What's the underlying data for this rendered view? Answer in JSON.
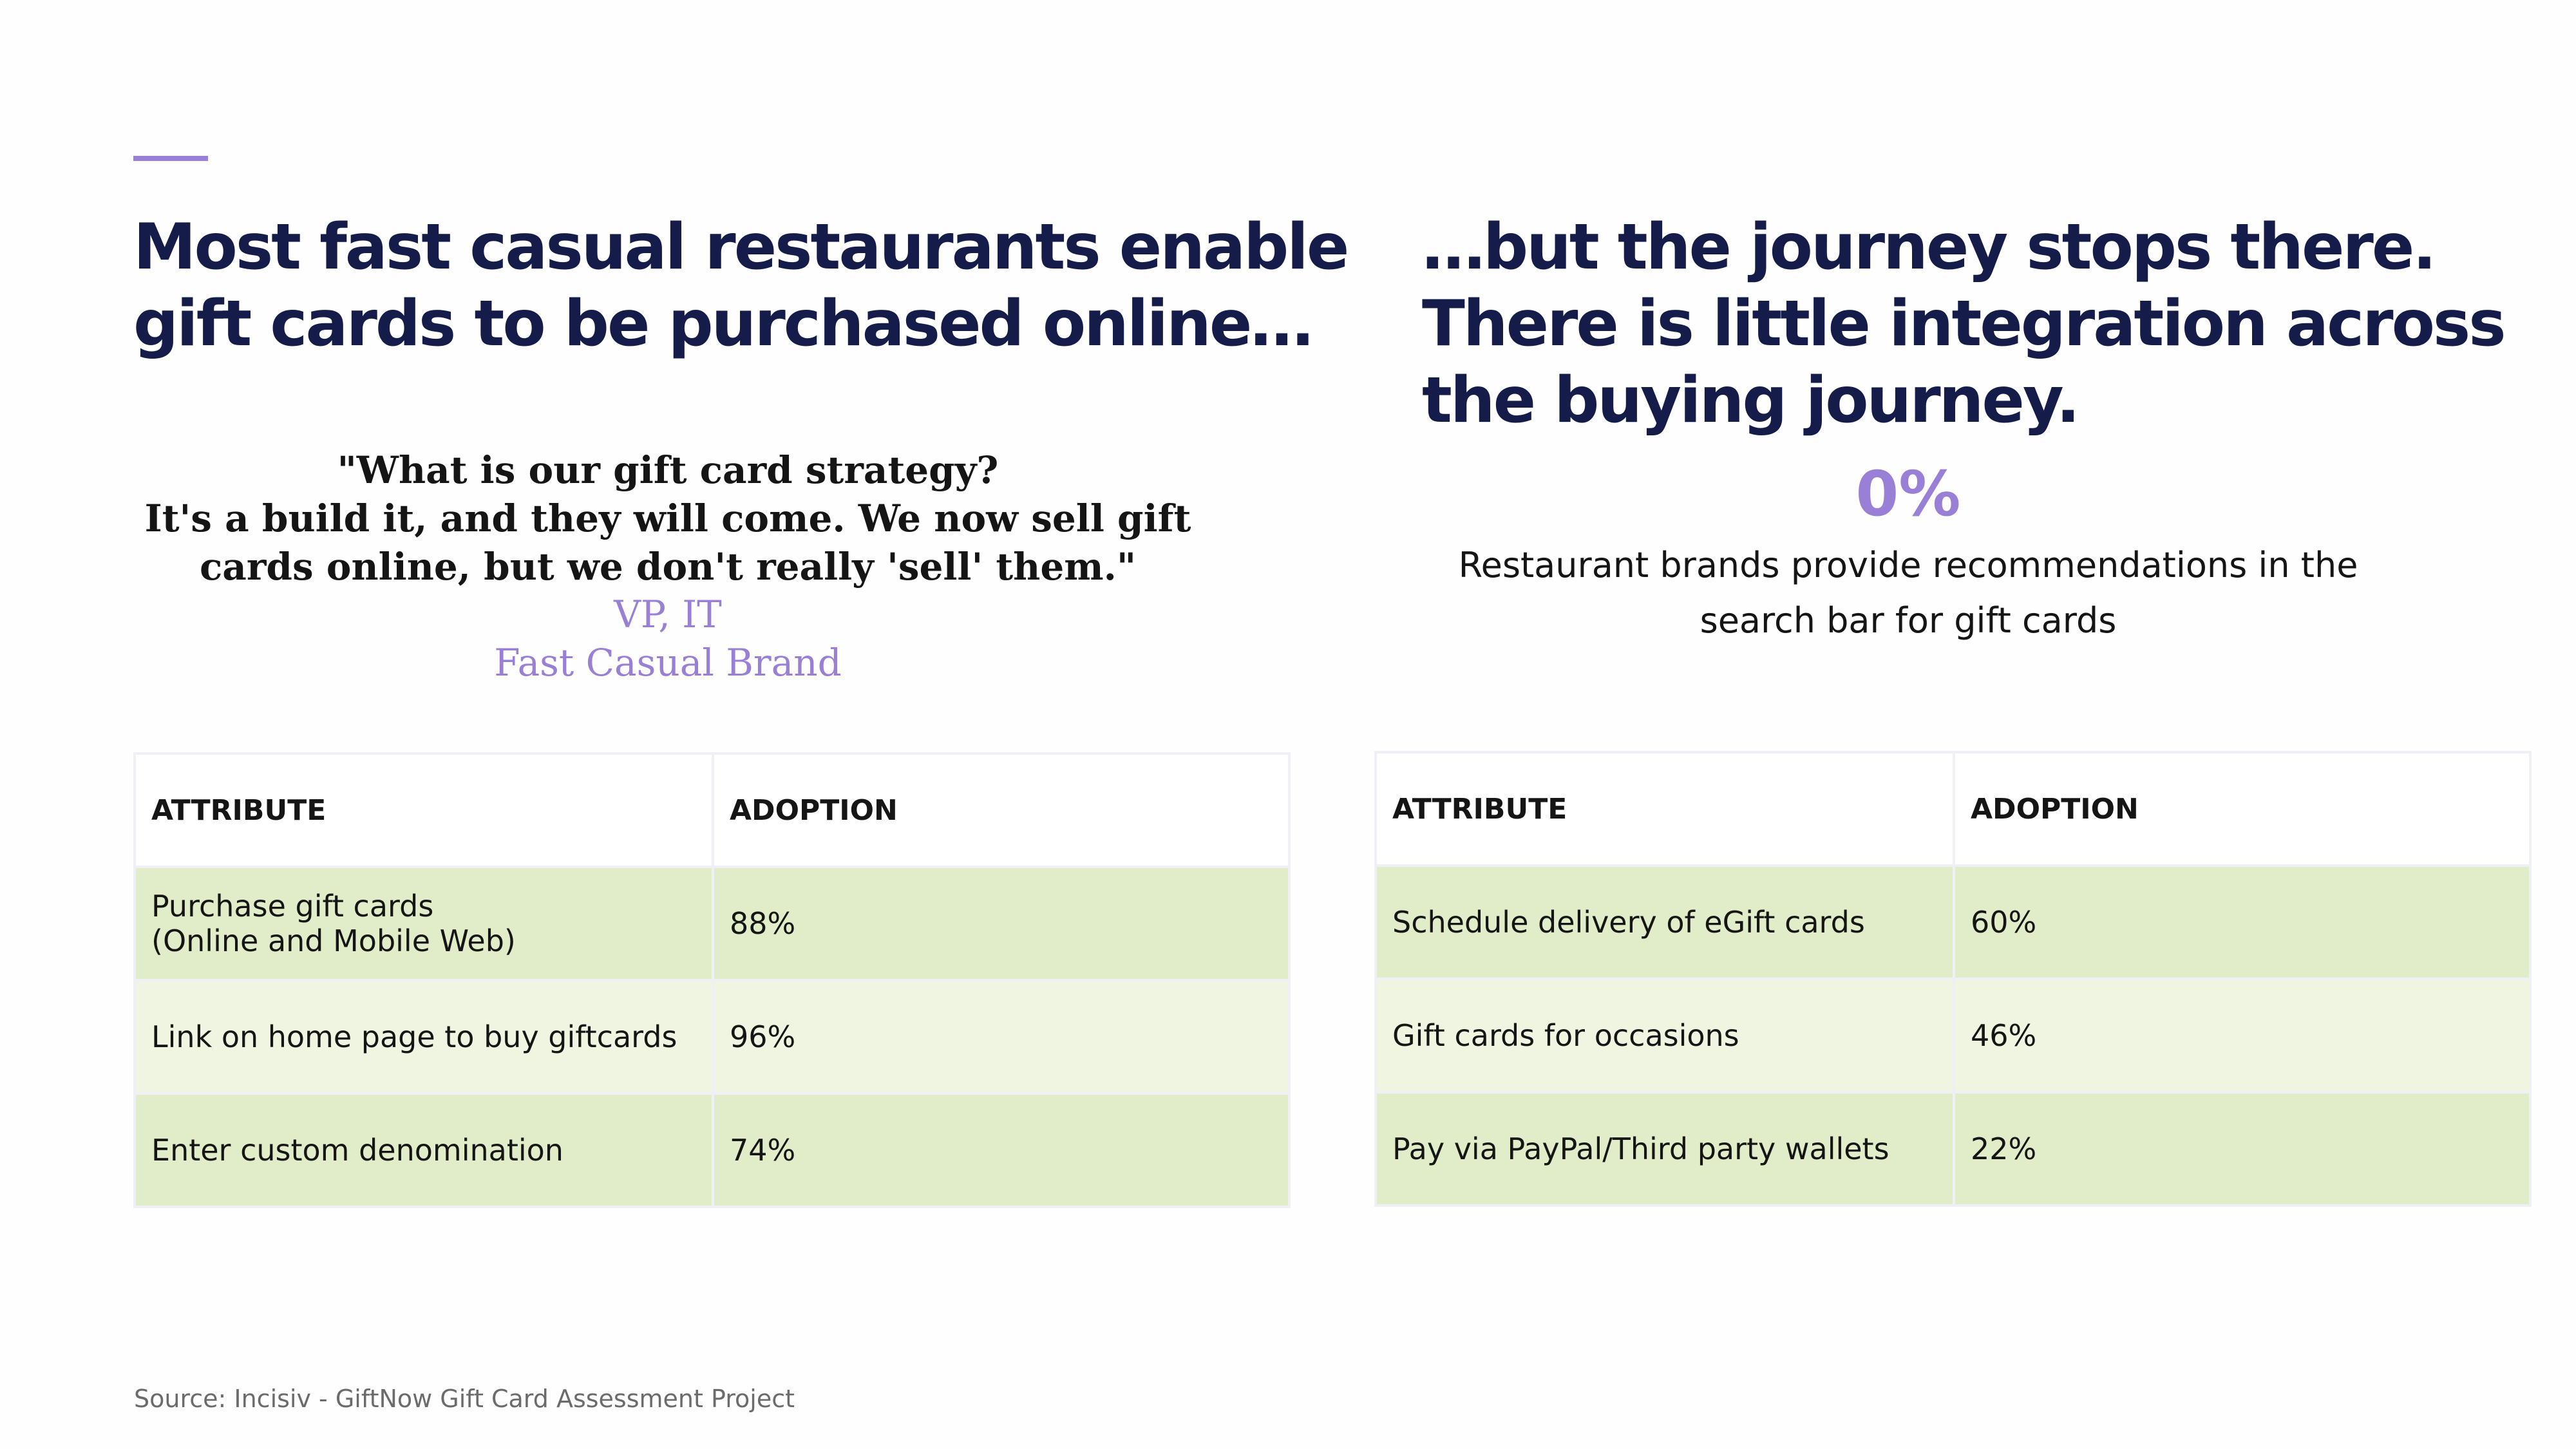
{
  "left": {
    "headline": "Most fast casual restaurants enable gift cards to be purchased online…",
    "quote": "\"What is our gift card strategy?\nIt's a build it, and they will come. We now sell gift cards online, but we don't really 'sell' them.\"",
    "attribution_role": "VP, IT",
    "attribution_org": "Fast Casual Brand",
    "table": {
      "headers": [
        "ATTRIBUTE",
        "ADOPTION"
      ],
      "rows": [
        {
          "attribute": "Purchase gift cards\n(Online and Mobile Web)",
          "adoption": "88%"
        },
        {
          "attribute": "Link on home page to buy giftcards",
          "adoption": "96%"
        },
        {
          "attribute": "Enter custom denomination",
          "adoption": "74%"
        }
      ]
    }
  },
  "right": {
    "headline": "…but the journey stops there. There is little integration across the buying journey.",
    "stat_value": "0%",
    "stat_description": "Restaurant brands provide recommendations in the search bar for gift cards",
    "table": {
      "headers": [
        "ATTRIBUTE",
        "ADOPTION"
      ],
      "rows": [
        {
          "attribute": "Schedule delivery of eGift cards",
          "adoption": "60%"
        },
        {
          "attribute": "Gift cards for occasions",
          "adoption": "46%"
        },
        {
          "attribute": "Pay via PayPal/Third party wallets",
          "adoption": "22%"
        }
      ]
    }
  },
  "source": "Source: Incisiv - GiftNow Gift Card Assessment Project",
  "colors": {
    "headline": "#151c4a",
    "accent": "#9a7fd6",
    "row_dark": "#e1edc8",
    "row_light": "#eff5e0"
  }
}
